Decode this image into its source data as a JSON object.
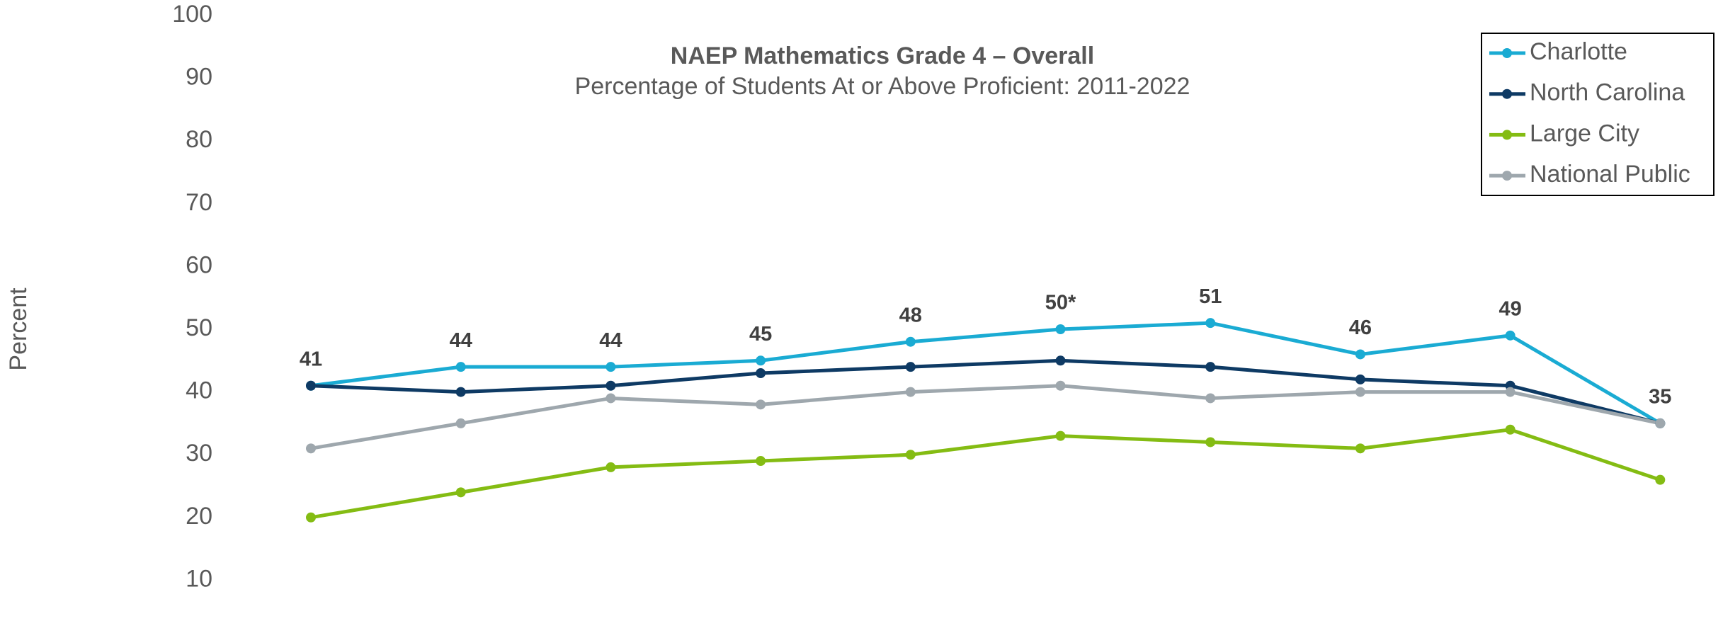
{
  "chart_data": {
    "type": "line",
    "title": "NAEP Mathematics Grade 4 – Overall",
    "subtitle": "Percentage of Students At or Above Proficient: 2011-2022",
    "y_label": "Percent",
    "categories": [
      null,
      null,
      null,
      null,
      null,
      null,
      null,
      null,
      null,
      null
    ],
    "ylim": [
      0,
      100
    ],
    "yticks": [
      10,
      20,
      30,
      40,
      50,
      60,
      70,
      80,
      90,
      100
    ],
    "grid": false,
    "legend": "upper right",
    "series": [
      {
        "name": "Charlotte",
        "color": "#1aabd3",
        "values": [
          41,
          44,
          44,
          45,
          48,
          50,
          51,
          46,
          49,
          35
        ],
        "value_labels": [
          "41",
          "44",
          "44",
          "45",
          "48",
          "50*",
          "51",
          "46",
          "49",
          "35"
        ]
      },
      {
        "name": "North Carolina",
        "color": "#0e3a64",
        "values": [
          41,
          40,
          41,
          43,
          44,
          45,
          44,
          42,
          41,
          35
        ]
      },
      {
        "name": "Large City",
        "color": "#84bc13",
        "values": [
          20,
          24,
          28,
          29,
          30,
          33,
          32,
          31,
          34,
          26
        ]
      },
      {
        "name": "National Public",
        "color": "#9ea7ad",
        "values": [
          31,
          35,
          39,
          38,
          40,
          41,
          39,
          40,
          40,
          35
        ]
      }
    ]
  }
}
